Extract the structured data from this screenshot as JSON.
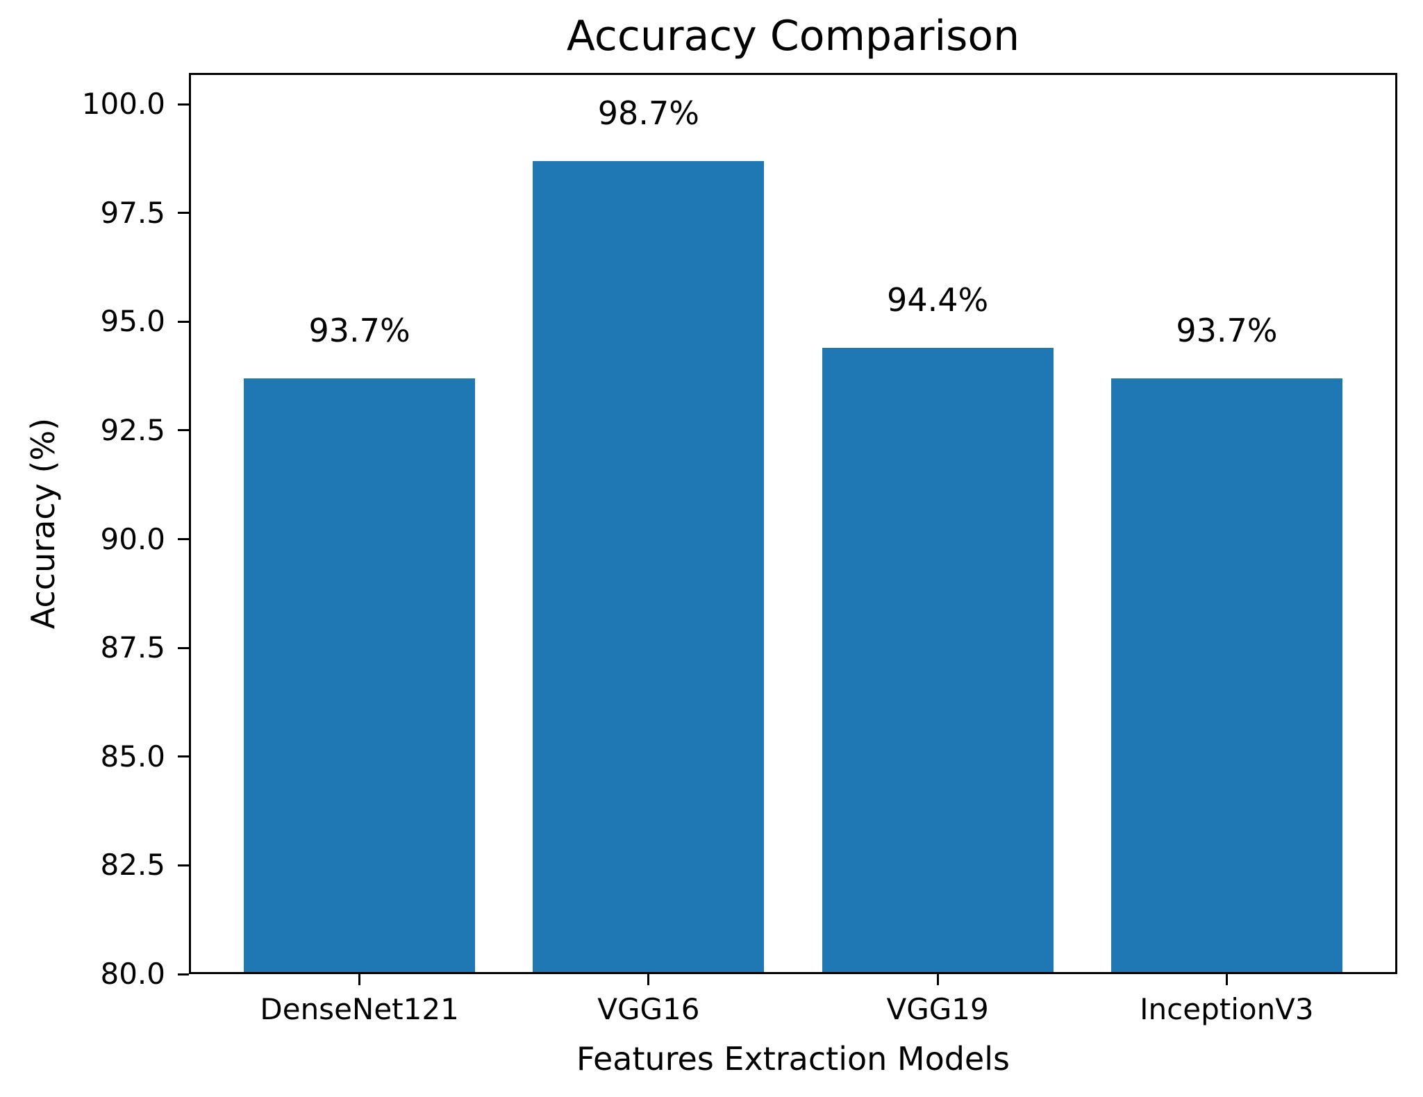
{
  "chart_data": {
    "type": "bar",
    "title": "Accuracy Comparison",
    "xlabel": "Features Extraction Models",
    "ylabel": "Accuracy (%)",
    "categories": [
      "DenseNet121",
      "VGG16",
      "VGG19",
      "InceptionV3"
    ],
    "values": [
      93.7,
      98.7,
      94.4,
      93.7
    ],
    "bar_value_labels": [
      "93.7%",
      "98.7%",
      "94.4%",
      "93.7%"
    ],
    "bar_color": "#1f77b4",
    "axis_color": "#000000",
    "text_color": "#000000",
    "background_color": "#ffffff",
    "ylim": [
      80.0,
      100.72
    ],
    "yticks": [
      80.0,
      82.5,
      85.0,
      87.5,
      90.0,
      92.5,
      95.0,
      97.5,
      100.0
    ],
    "ytick_labels": [
      "80.0",
      "82.5",
      "85.0",
      "87.5",
      "90.0",
      "92.5",
      "95.0",
      "97.5",
      "100.0"
    ],
    "grid": false,
    "legend": "none"
  }
}
